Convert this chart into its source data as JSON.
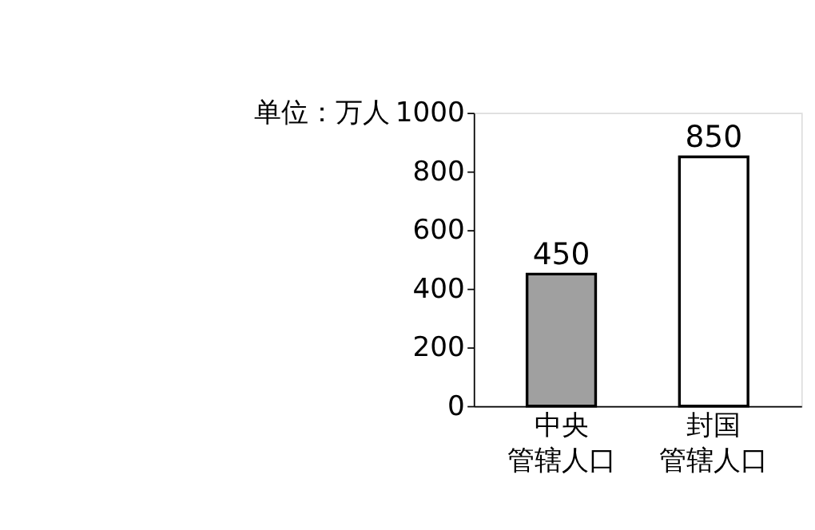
{
  "chart_data": {
    "type": "bar",
    "ylabel": "单位：万人",
    "categories": [
      "中央管辖人口",
      "封国管辖人口"
    ],
    "values": [
      450,
      850
    ],
    "colors": [
      "#a0a0a0",
      "#ffffff"
    ],
    "ylim": [
      0,
      1000
    ],
    "yticks": [
      0,
      200,
      400,
      600,
      800,
      1000
    ],
    "data_labels": true,
    "grid": false
  }
}
